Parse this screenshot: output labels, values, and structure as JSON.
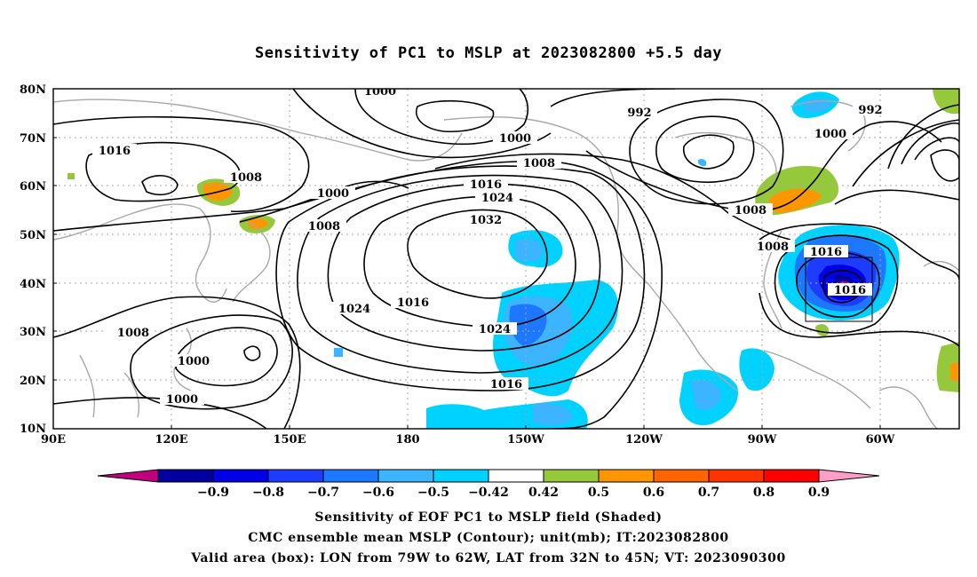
{
  "title": "Sensitivity of PC1 to MSLP at 2023082800 +5.5 day",
  "lat_labels": [
    "80N",
    "70N",
    "60N",
    "50N",
    "40N",
    "30N",
    "20N",
    "10N"
  ],
  "lon_labels": [
    "90E",
    "120E",
    "150E",
    "180",
    "150W",
    "120W",
    "90W",
    "60W"
  ],
  "contour_labels": [
    "1000",
    "992",
    "992",
    "1016",
    "1000",
    "1008",
    "1008",
    "1016",
    "1024",
    "1000",
    "1000",
    "1008",
    "1008",
    "1032",
    "1008",
    "1016",
    "1016",
    "1024",
    "1016",
    "1008",
    "1024",
    "1000",
    "1016",
    "1000"
  ],
  "colorbar": {
    "labels": [
      "−0.9",
      "−0.8",
      "−0.7",
      "−0.6",
      "−0.5",
      "−0.42",
      "0.42",
      "0.5",
      "0.6",
      "0.7",
      "0.8",
      "0.9"
    ],
    "colors": [
      "#c0007c",
      "#0000a0",
      "#0000e6",
      "#1e3cff",
      "#1e78ff",
      "#3cb4ff",
      "#00d2ff",
      "#ffffff",
      "#96c83c",
      "#ff9600",
      "#ff6400",
      "#ff3200",
      "#ff0000",
      "#ff9ec8"
    ]
  },
  "captions": [
    "Sensitivity of EOF PC1 to MSLP field (Shaded)",
    "CMC ensemble mean MSLP (Contour); unit(mb); IT:2023082800",
    "Valid area (box): LON from 79W to 62W, LAT from 32N to 45N; VT: 2023090300"
  ]
}
